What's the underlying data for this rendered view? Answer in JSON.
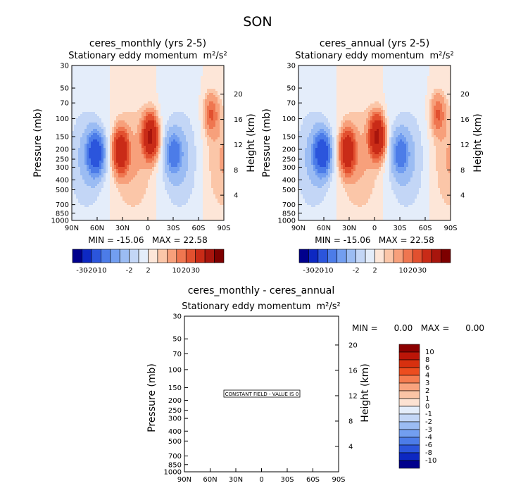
{
  "figure": {
    "title": "SON"
  },
  "chart_data": [
    {
      "type": "heatmap",
      "title": "ceres_monthly (yrs 2-5)",
      "subtitle": "Stationary eddy momentum",
      "units": "m²/s²",
      "xlabel": "",
      "ylabel": "Pressure (mb)",
      "ylabel_right": "Height (km)",
      "x_ticks": [
        "90N",
        "60N",
        "30N",
        "0",
        "30S",
        "60S",
        "90S"
      ],
      "y_ticks": [
        "30",
        "50",
        "70",
        "100",
        "150",
        "200",
        "250",
        "300",
        "400",
        "500",
        "700",
        "850",
        "1000"
      ],
      "y_ticks_right": [
        "20",
        "16",
        "12",
        "8",
        "4"
      ],
      "min_max": "MIN = -15.06   MAX = 22.58",
      "colorbar_labels": [
        "-30",
        "-20",
        "-10",
        "-2",
        "2",
        "10",
        "20",
        "30"
      ],
      "features": [
        {
          "lat": 62,
          "p": 220,
          "value": -15
        },
        {
          "lat": 32,
          "p": 210,
          "value": 18
        },
        {
          "lat": -3,
          "p": 150,
          "value": 22.6
        },
        {
          "lat": -31,
          "p": 220,
          "value": -7
        },
        {
          "lat": -75,
          "p": 90,
          "value": 6
        }
      ]
    },
    {
      "type": "heatmap",
      "title": "ceres_annual (yrs 2-5)",
      "subtitle": "Stationary eddy momentum",
      "units": "m²/s²",
      "xlabel": "",
      "ylabel": "Pressure (mb)",
      "ylabel_right": "Height (km)",
      "x_ticks": [
        "90N",
        "60N",
        "30N",
        "0",
        "30S",
        "60S",
        "90S"
      ],
      "y_ticks": [
        "30",
        "50",
        "70",
        "100",
        "150",
        "200",
        "250",
        "300",
        "400",
        "500",
        "700",
        "850",
        "1000"
      ],
      "y_ticks_right": [
        "20",
        "16",
        "12",
        "8",
        "4"
      ],
      "min_max": "MIN = -15.06   MAX = 22.58",
      "colorbar_labels": [
        "-30",
        "-20",
        "-10",
        "-2",
        "2",
        "10",
        "20",
        "30"
      ],
      "features": [
        {
          "lat": 62,
          "p": 220,
          "value": -15
        },
        {
          "lat": 32,
          "p": 210,
          "value": 18
        },
        {
          "lat": -3,
          "p": 150,
          "value": 22.6
        },
        {
          "lat": -31,
          "p": 220,
          "value": -7
        },
        {
          "lat": -75,
          "p": 90,
          "value": 6
        }
      ]
    },
    {
      "type": "heatmap",
      "title": "ceres_monthly - ceres_annual",
      "subtitle": "Stationary eddy momentum",
      "units": "m²/s²",
      "ylabel": "Pressure (mb)",
      "ylabel_right": "Height (km)",
      "x_ticks": [
        "90N",
        "60N",
        "30N",
        "0",
        "30S",
        "60S",
        "90S"
      ],
      "y_ticks": [
        "30",
        "50",
        "70",
        "100",
        "150",
        "200",
        "250",
        "300",
        "400",
        "500",
        "700",
        "850",
        "1000"
      ],
      "y_ticks_right": [
        "20",
        "16",
        "12",
        "8",
        "4"
      ],
      "min_max": "MIN =      0.00   MAX =      0.00",
      "constant_field_label": "CONSTANT FIELD - VALUE IS 0",
      "colorbar_labels": [
        "10",
        "8",
        "6",
        "4",
        "3",
        "2",
        "1",
        "0",
        "-1",
        "-2",
        "-3",
        "-4",
        "-6",
        "-8",
        "-10"
      ]
    }
  ],
  "colors": {
    "abs_scale": [
      "#00008c",
      "#0d28c2",
      "#2b55dc",
      "#4c7ce8",
      "#729ef0",
      "#9bbcf3",
      "#c3d6f6",
      "#e4edfa",
      "#fde6d8",
      "#fbc6a8",
      "#f7a07b",
      "#ef7650",
      "#e2502f",
      "#c92b17",
      "#a8150d",
      "#7d0000"
    ],
    "diff_scale": [
      "#8b0000",
      "#bb1508",
      "#d7300f",
      "#ec4d1f",
      "#f57c50",
      "#f9a37e",
      "#fbc4a5",
      "#fde2d2",
      "#e4edfa",
      "#c3d6f6",
      "#9bbcf3",
      "#729ef0",
      "#4c7ce8",
      "#2b55dc",
      "#0d28c2",
      "#00008c"
    ]
  }
}
